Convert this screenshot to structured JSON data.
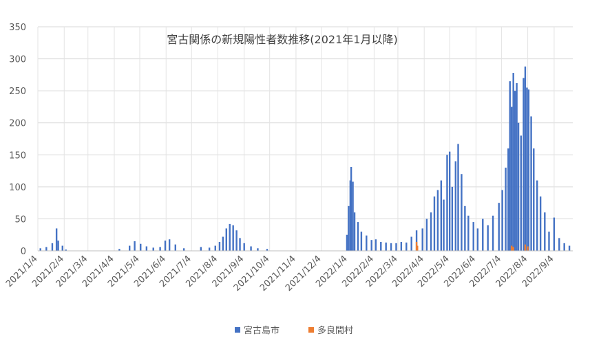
{
  "chart_data": {
    "type": "bar",
    "title": "宮古関係の新規陽性者数推移(2021年1月以降)",
    "xlabel": "",
    "ylabel": "",
    "ylim": [
      0,
      350
    ],
    "yticks": [
      0,
      50,
      100,
      150,
      200,
      250,
      300,
      350
    ],
    "xlim": [
      "2021-01-04",
      "2022-09-26"
    ],
    "xticks": [
      "2021/1/4",
      "2021/2/4",
      "2021/3/4",
      "2021/4/4",
      "2021/5/4",
      "2021/6/4",
      "2021/7/4",
      "2021/8/4",
      "2021/9/4",
      "2021/10/4",
      "2021/11/4",
      "2021/12/4",
      "2022/1/4",
      "2022/2/4",
      "2022/3/4",
      "2022/4/4",
      "2022/5/4",
      "2022/6/4",
      "2022/7/4",
      "2022/8/4",
      "2022/9/4"
    ],
    "grid": "vertical and horizontal",
    "legend_position": "bottom",
    "series": [
      {
        "name": "宮古島市",
        "color": "#4472C4",
        "values": [
          [
            "2021-01-07",
            4
          ],
          [
            "2021-01-14",
            6
          ],
          [
            "2021-01-21",
            12
          ],
          [
            "2021-01-26",
            35
          ],
          [
            "2021-01-28",
            16
          ],
          [
            "2021-02-02",
            8
          ],
          [
            "2021-02-06",
            2
          ],
          [
            "2021-04-10",
            3
          ],
          [
            "2021-04-22",
            8
          ],
          [
            "2021-04-28",
            15
          ],
          [
            "2021-05-05",
            11
          ],
          [
            "2021-05-12",
            7
          ],
          [
            "2021-05-20",
            5
          ],
          [
            "2021-05-28",
            6
          ],
          [
            "2021-06-03",
            16
          ],
          [
            "2021-06-08",
            18
          ],
          [
            "2021-06-15",
            10
          ],
          [
            "2021-06-25",
            4
          ],
          [
            "2021-07-15",
            6
          ],
          [
            "2021-07-25",
            5
          ],
          [
            "2021-08-01",
            8
          ],
          [
            "2021-08-06",
            14
          ],
          [
            "2021-08-10",
            22
          ],
          [
            "2021-08-14",
            35
          ],
          [
            "2021-08-18",
            42
          ],
          [
            "2021-08-22",
            40
          ],
          [
            "2021-08-26",
            32
          ],
          [
            "2021-08-30",
            20
          ],
          [
            "2021-09-04",
            12
          ],
          [
            "2021-09-12",
            7
          ],
          [
            "2021-09-20",
            4
          ],
          [
            "2021-10-01",
            3
          ],
          [
            "2022-01-03",
            25
          ],
          [
            "2022-01-05",
            70
          ],
          [
            "2022-01-07",
            110
          ],
          [
            "2022-01-08",
            131
          ],
          [
            "2022-01-10",
            108
          ],
          [
            "2022-01-12",
            60
          ],
          [
            "2022-01-16",
            45
          ],
          [
            "2022-01-20",
            30
          ],
          [
            "2022-01-26",
            24
          ],
          [
            "2022-02-01",
            17
          ],
          [
            "2022-02-06",
            18
          ],
          [
            "2022-02-12",
            14
          ],
          [
            "2022-02-18",
            13
          ],
          [
            "2022-02-24",
            12
          ],
          [
            "2022-03-02",
            12
          ],
          [
            "2022-03-08",
            14
          ],
          [
            "2022-03-14",
            13
          ],
          [
            "2022-03-20",
            22
          ],
          [
            "2022-03-26",
            32
          ],
          [
            "2022-04-02",
            35
          ],
          [
            "2022-04-07",
            50
          ],
          [
            "2022-04-12",
            60
          ],
          [
            "2022-04-16",
            85
          ],
          [
            "2022-04-20",
            95
          ],
          [
            "2022-04-24",
            110
          ],
          [
            "2022-04-27",
            80
          ],
          [
            "2022-05-01",
            150
          ],
          [
            "2022-05-04",
            155
          ],
          [
            "2022-05-07",
            100
          ],
          [
            "2022-05-11",
            140
          ],
          [
            "2022-05-14",
            167
          ],
          [
            "2022-05-18",
            120
          ],
          [
            "2022-05-22",
            70
          ],
          [
            "2022-05-26",
            55
          ],
          [
            "2022-06-01",
            45
          ],
          [
            "2022-06-06",
            35
          ],
          [
            "2022-06-12",
            50
          ],
          [
            "2022-06-18",
            40
          ],
          [
            "2022-06-24",
            55
          ],
          [
            "2022-07-01",
            75
          ],
          [
            "2022-07-05",
            95
          ],
          [
            "2022-07-09",
            130
          ],
          [
            "2022-07-12",
            160
          ],
          [
            "2022-07-14",
            265
          ],
          [
            "2022-07-16",
            225
          ],
          [
            "2022-07-18",
            278
          ],
          [
            "2022-07-20",
            250
          ],
          [
            "2022-07-22",
            262
          ],
          [
            "2022-07-24",
            200
          ],
          [
            "2022-07-27",
            180
          ],
          [
            "2022-07-30",
            270
          ],
          [
            "2022-08-01",
            288
          ],
          [
            "2022-08-03",
            255
          ],
          [
            "2022-08-05",
            252
          ],
          [
            "2022-08-08",
            210
          ],
          [
            "2022-08-11",
            160
          ],
          [
            "2022-08-15",
            110
          ],
          [
            "2022-08-19",
            85
          ],
          [
            "2022-08-24",
            60
          ],
          [
            "2022-08-29",
            30
          ],
          [
            "2022-09-04",
            52
          ],
          [
            "2022-09-10",
            20
          ],
          [
            "2022-09-16",
            12
          ],
          [
            "2022-09-22",
            8
          ]
        ]
      },
      {
        "name": "多良間村",
        "color": "#ED7D31",
        "values": [
          [
            "2022-03-26",
            14
          ],
          [
            "2022-03-27",
            8
          ],
          [
            "2022-07-16",
            8
          ],
          [
            "2022-07-18",
            6
          ],
          [
            "2022-08-01",
            10
          ],
          [
            "2022-08-04",
            7
          ]
        ]
      }
    ]
  }
}
